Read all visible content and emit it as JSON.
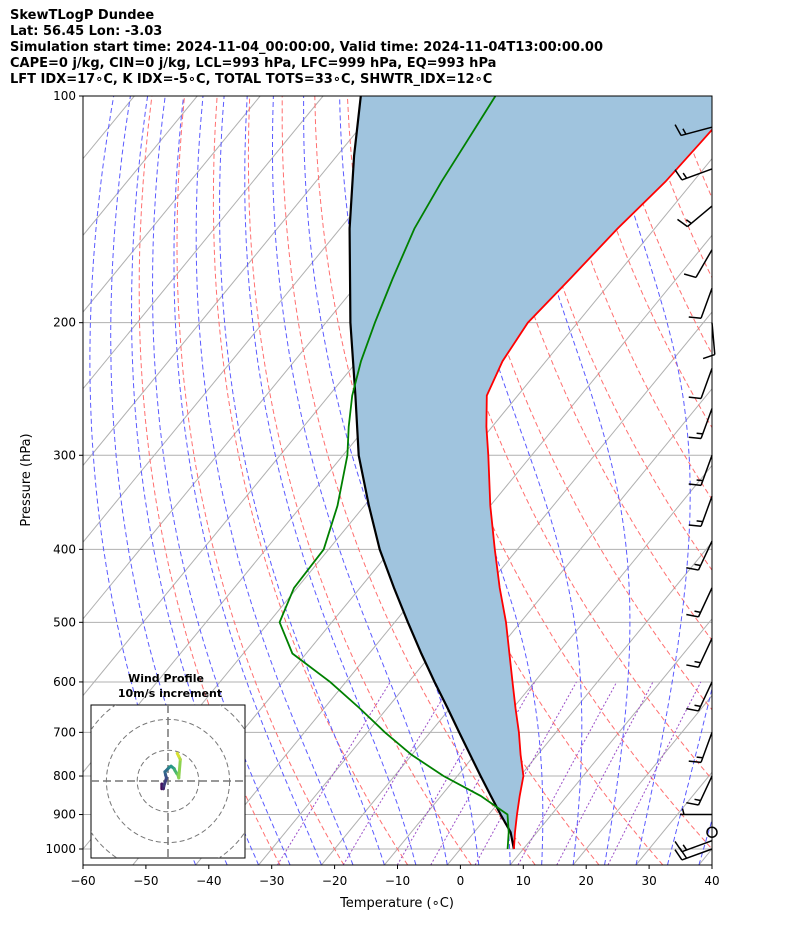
{
  "header": {
    "line1": "SkewTLogP Dundee",
    "line2": "Lat: 56.45   Lon: -3.03",
    "line3": "Simulation start time: 2024-11-04_00:00:00, Valid time: 2024-11-04T13:00:00.00",
    "line4": "CAPE=0 j/kg, CIN=0 j/kg, LCL=993 hPa, LFC=999 hPa, EQ=993 hPa",
    "line5": "LFT IDX=17∘C, K IDX=-5∘C, TOTAL TOTS=33∘C, SHWTR_IDX=12∘C"
  },
  "colors": {
    "temperature": "#ff0000",
    "dewpoint": "#008000",
    "parcel": "#000000",
    "cape_fill": "#a0c4de",
    "dry_adiabats": "#ff6f6f",
    "moist_adiabats": "#5b5bff",
    "mixing_ratio": "#9c4fc8",
    "isotherms": "#b0b0b0"
  },
  "chart_data": {
    "type": "line",
    "subtype": "skew-t-log-p",
    "xlabel": "Temperature (∘C)",
    "ylabel": "Pressure (hPa)",
    "xlim": [
      -60,
      40
    ],
    "ylim": [
      1050,
      100
    ],
    "yscale": "log",
    "x_ticks": [
      "−60",
      "−50",
      "−40",
      "−30",
      "−20",
      "−10",
      "0",
      "10",
      "20",
      "30",
      "40"
    ],
    "y_ticks": [
      "100",
      "200",
      "300",
      "400",
      "500",
      "600",
      "700",
      "800",
      "900",
      "1000"
    ],
    "series": [
      {
        "key": "temperature",
        "pressure": [
          1000,
          950,
          900,
          850,
          800,
          750,
          700,
          650,
          600,
          550,
          500,
          450,
          400,
          350,
          300,
          275,
          250,
          225,
          200,
          175,
          150,
          130,
          115,
          100
        ],
        "temp": [
          8.5,
          6.5,
          4.5,
          2.5,
          0.5,
          -2.7,
          -5.9,
          -9.6,
          -13.5,
          -17.7,
          -22.3,
          -27.8,
          -33.6,
          -40.0,
          -46.9,
          -50.9,
          -54.9,
          -56.9,
          -57.9,
          -56.9,
          -55.9,
          -54.4,
          -53.9,
          -53.4
        ]
      },
      {
        "key": "dewpoint",
        "pressure": [
          1000,
          950,
          900,
          850,
          800,
          750,
          700,
          650,
          600,
          550,
          500,
          450,
          400,
          350,
          300,
          275,
          250,
          225,
          200,
          175,
          150,
          130,
          115,
          100
        ],
        "temp": [
          7.5,
          5.5,
          3.0,
          -3.7,
          -12.2,
          -20.0,
          -27.2,
          -34.4,
          -42.5,
          -52.2,
          -58.3,
          -60.5,
          -60.8,
          -64.3,
          -69.3,
          -72.8,
          -76.3,
          -79.4,
          -82.2,
          -85.1,
          -88.2,
          -90.0,
          -91.2,
          -92.6
        ]
      },
      {
        "key": "parcel",
        "pressure": [
          1000,
          950,
          900,
          850,
          800,
          750,
          700,
          650,
          600,
          550,
          500,
          450,
          400,
          350,
          300,
          250,
          200,
          150,
          120,
          100
        ],
        "temp": [
          8.5,
          5.8,
          1.9,
          -2.1,
          -6.3,
          -10.7,
          -15.4,
          -20.4,
          -25.9,
          -31.7,
          -37.9,
          -44.6,
          -51.9,
          -59.3,
          -67.5,
          -75.8,
          -86.1,
          -98.5,
          -107.3,
          -114.0
        ]
      }
    ],
    "barbs": [
      {
        "pressure": 1000,
        "direction_deg": 250,
        "speed_kt": 20
      },
      {
        "pressure": 975,
        "direction_deg": 250,
        "speed_kt": 15
      },
      {
        "pressure": 950,
        "direction_deg": 0,
        "speed_kt": 0
      },
      {
        "pressure": 900,
        "direction_deg": 270,
        "speed_kt": 5
      },
      {
        "pressure": 800,
        "direction_deg": 205,
        "speed_kt": 15
      },
      {
        "pressure": 700,
        "direction_deg": 200,
        "speed_kt": 15
      },
      {
        "pressure": 600,
        "direction_deg": 205,
        "speed_kt": 15
      },
      {
        "pressure": 525,
        "direction_deg": 205,
        "speed_kt": 15
      },
      {
        "pressure": 450,
        "direction_deg": 205,
        "speed_kt": 15
      },
      {
        "pressure": 390,
        "direction_deg": 205,
        "speed_kt": 15
      },
      {
        "pressure": 340,
        "direction_deg": 200,
        "speed_kt": 15
      },
      {
        "pressure": 300,
        "direction_deg": 200,
        "speed_kt": 15
      },
      {
        "pressure": 260,
        "direction_deg": 200,
        "speed_kt": 15
      },
      {
        "pressure": 230,
        "direction_deg": 200,
        "speed_kt": 10
      },
      {
        "pressure": 200,
        "direction_deg": 175,
        "speed_kt": 10
      },
      {
        "pressure": 180,
        "direction_deg": 200,
        "speed_kt": 10
      },
      {
        "pressure": 160,
        "direction_deg": 210,
        "speed_kt": 10
      },
      {
        "pressure": 140,
        "direction_deg": 230,
        "speed_kt": 15
      },
      {
        "pressure": 125,
        "direction_deg": 250,
        "speed_kt": 15
      },
      {
        "pressure": 110,
        "direction_deg": 255,
        "speed_kt": 15
      }
    ],
    "hodograph": {
      "title": "Wind Profile",
      "subtitle": "10m/s increment",
      "rings_ms": [
        10,
        20,
        30,
        40
      ],
      "range_ms": 25,
      "u": [
        -2.0,
        -2.0,
        -1.5,
        -1.3,
        -0.5,
        -0.8,
        -1.0,
        0.0,
        0.5,
        1.0,
        2.0,
        2.2,
        2.8,
        3.2,
        3.5,
        4.0,
        3.5,
        3.0
      ],
      "v": [
        -2.5,
        -1.0,
        -2.5,
        -1.5,
        1.0,
        2.0,
        3.0,
        4.0,
        4.5,
        4.8,
        4.0,
        3.5,
        2.5,
        2.0,
        1.0,
        7.0,
        8.0,
        9.0
      ]
    }
  }
}
